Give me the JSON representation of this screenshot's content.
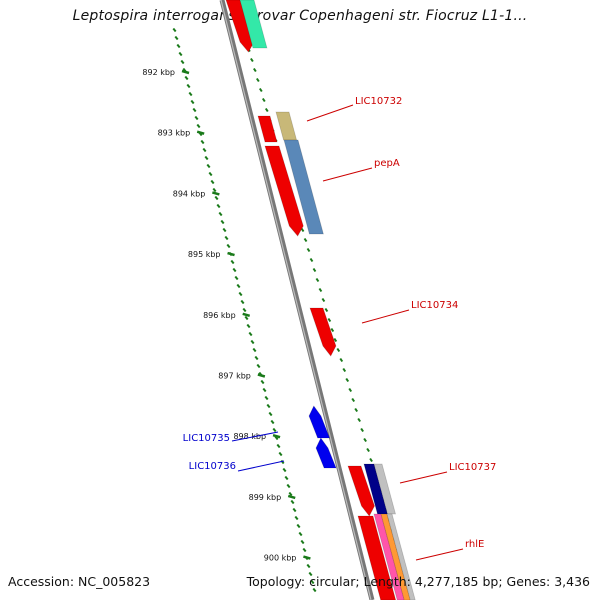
{
  "header": {
    "title": "Leptospira interrogans serovar Copenhageni str. Fiocruz L1-1..."
  },
  "footer": {
    "accession": "Accession: NC_005823",
    "summary": "Topology: circular; Length: 4,277,185 bp; Genes: 3,436"
  },
  "map": {
    "backbone_color": "#777777",
    "tick_color": "#1a7a1a",
    "kbp_ticks": [
      {
        "label": "892 kbp",
        "kbp": 892
      },
      {
        "label": "893 kbp",
        "kbp": 893
      },
      {
        "label": "894 kbp",
        "kbp": 894
      },
      {
        "label": "895 kbp",
        "kbp": 895
      },
      {
        "label": "896 kbp",
        "kbp": 896
      },
      {
        "label": "897 kbp",
        "kbp": 897
      },
      {
        "label": "898 kbp",
        "kbp": 898
      },
      {
        "label": "899 kbp",
        "kbp": 899
      },
      {
        "label": "900 kbp",
        "kbp": 900
      }
    ],
    "gene_labels": [
      {
        "name": "LIC10732",
        "color": "#cc0000"
      },
      {
        "name": "pepA",
        "color": "#cc0000"
      },
      {
        "name": "LIC10734",
        "color": "#cc0000"
      },
      {
        "name": "LIC10735",
        "color": "#0000cc"
      },
      {
        "name": "LIC10736",
        "color": "#0000cc"
      },
      {
        "name": "LIC10737",
        "color": "#cc0000"
      },
      {
        "name": "rhlE",
        "color": "#cc0000"
      }
    ],
    "feature_colors": {
      "cds": "#ee0000",
      "reverse_cds": "#0000ee",
      "teal": "#33e8a8",
      "khaki": "#c8b878",
      "steel": "#5a88b8",
      "navy": "#000088",
      "gray": "#c0c0c0",
      "pink": "#ff55aa",
      "orange": "#ff9933"
    }
  }
}
